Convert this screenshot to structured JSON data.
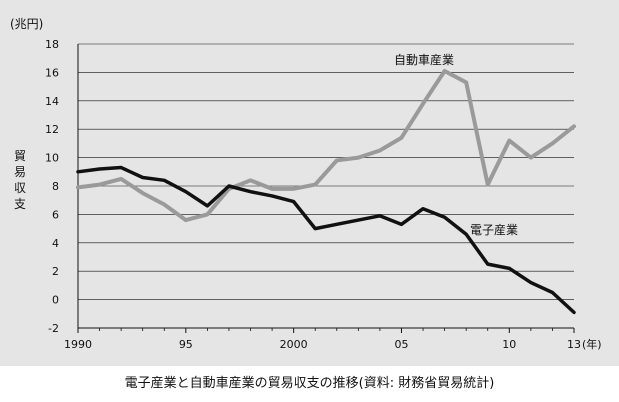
{
  "caption": "電子産業と自動車産業の貿易収支の推移(資料: 財務省貿易統計)",
  "chart_data": {
    "type": "line",
    "title": "",
    "xlabel": "(年)",
    "ylabel": "貿易収支",
    "yunit": "(兆円)",
    "ylim": [
      -2,
      18
    ],
    "xlim": [
      1990,
      2013
    ],
    "grid": true,
    "x": [
      1990,
      1991,
      1992,
      1993,
      1994,
      1995,
      1996,
      1997,
      1998,
      1999,
      2000,
      2001,
      2002,
      2003,
      2004,
      2005,
      2006,
      2007,
      2008,
      2009,
      2010,
      2011,
      2012,
      2013
    ],
    "x_ticks": [
      {
        "value": 1990,
        "label": "1990"
      },
      {
        "value": 1995,
        "label": "95"
      },
      {
        "value": 2000,
        "label": "2000"
      },
      {
        "value": 2005,
        "label": "05"
      },
      {
        "value": 2010,
        "label": "10"
      },
      {
        "value": 2013,
        "label": "13"
      }
    ],
    "y_ticks": [
      -2,
      0,
      2,
      4,
      6,
      8,
      10,
      12,
      14,
      16,
      18
    ],
    "series": [
      {
        "name": "自動車産業",
        "color": "#9a9a9a",
        "values": [
          7.9,
          8.1,
          8.5,
          7.5,
          6.7,
          5.6,
          6.0,
          7.8,
          8.4,
          7.8,
          7.8,
          8.1,
          9.8,
          10.0,
          10.5,
          11.4,
          13.8,
          16.1,
          15.3,
          8.1,
          11.2,
          10.0,
          11.0,
          12.2
        ]
      },
      {
        "name": "電子産業",
        "color": "#111111",
        "values": [
          9.0,
          9.2,
          9.3,
          8.6,
          8.4,
          7.6,
          6.6,
          8.0,
          7.6,
          7.3,
          6.9,
          5.0,
          5.3,
          5.6,
          5.9,
          5.3,
          6.4,
          5.8,
          4.6,
          2.5,
          2.2,
          1.2,
          0.5,
          -0.9
        ]
      }
    ]
  }
}
